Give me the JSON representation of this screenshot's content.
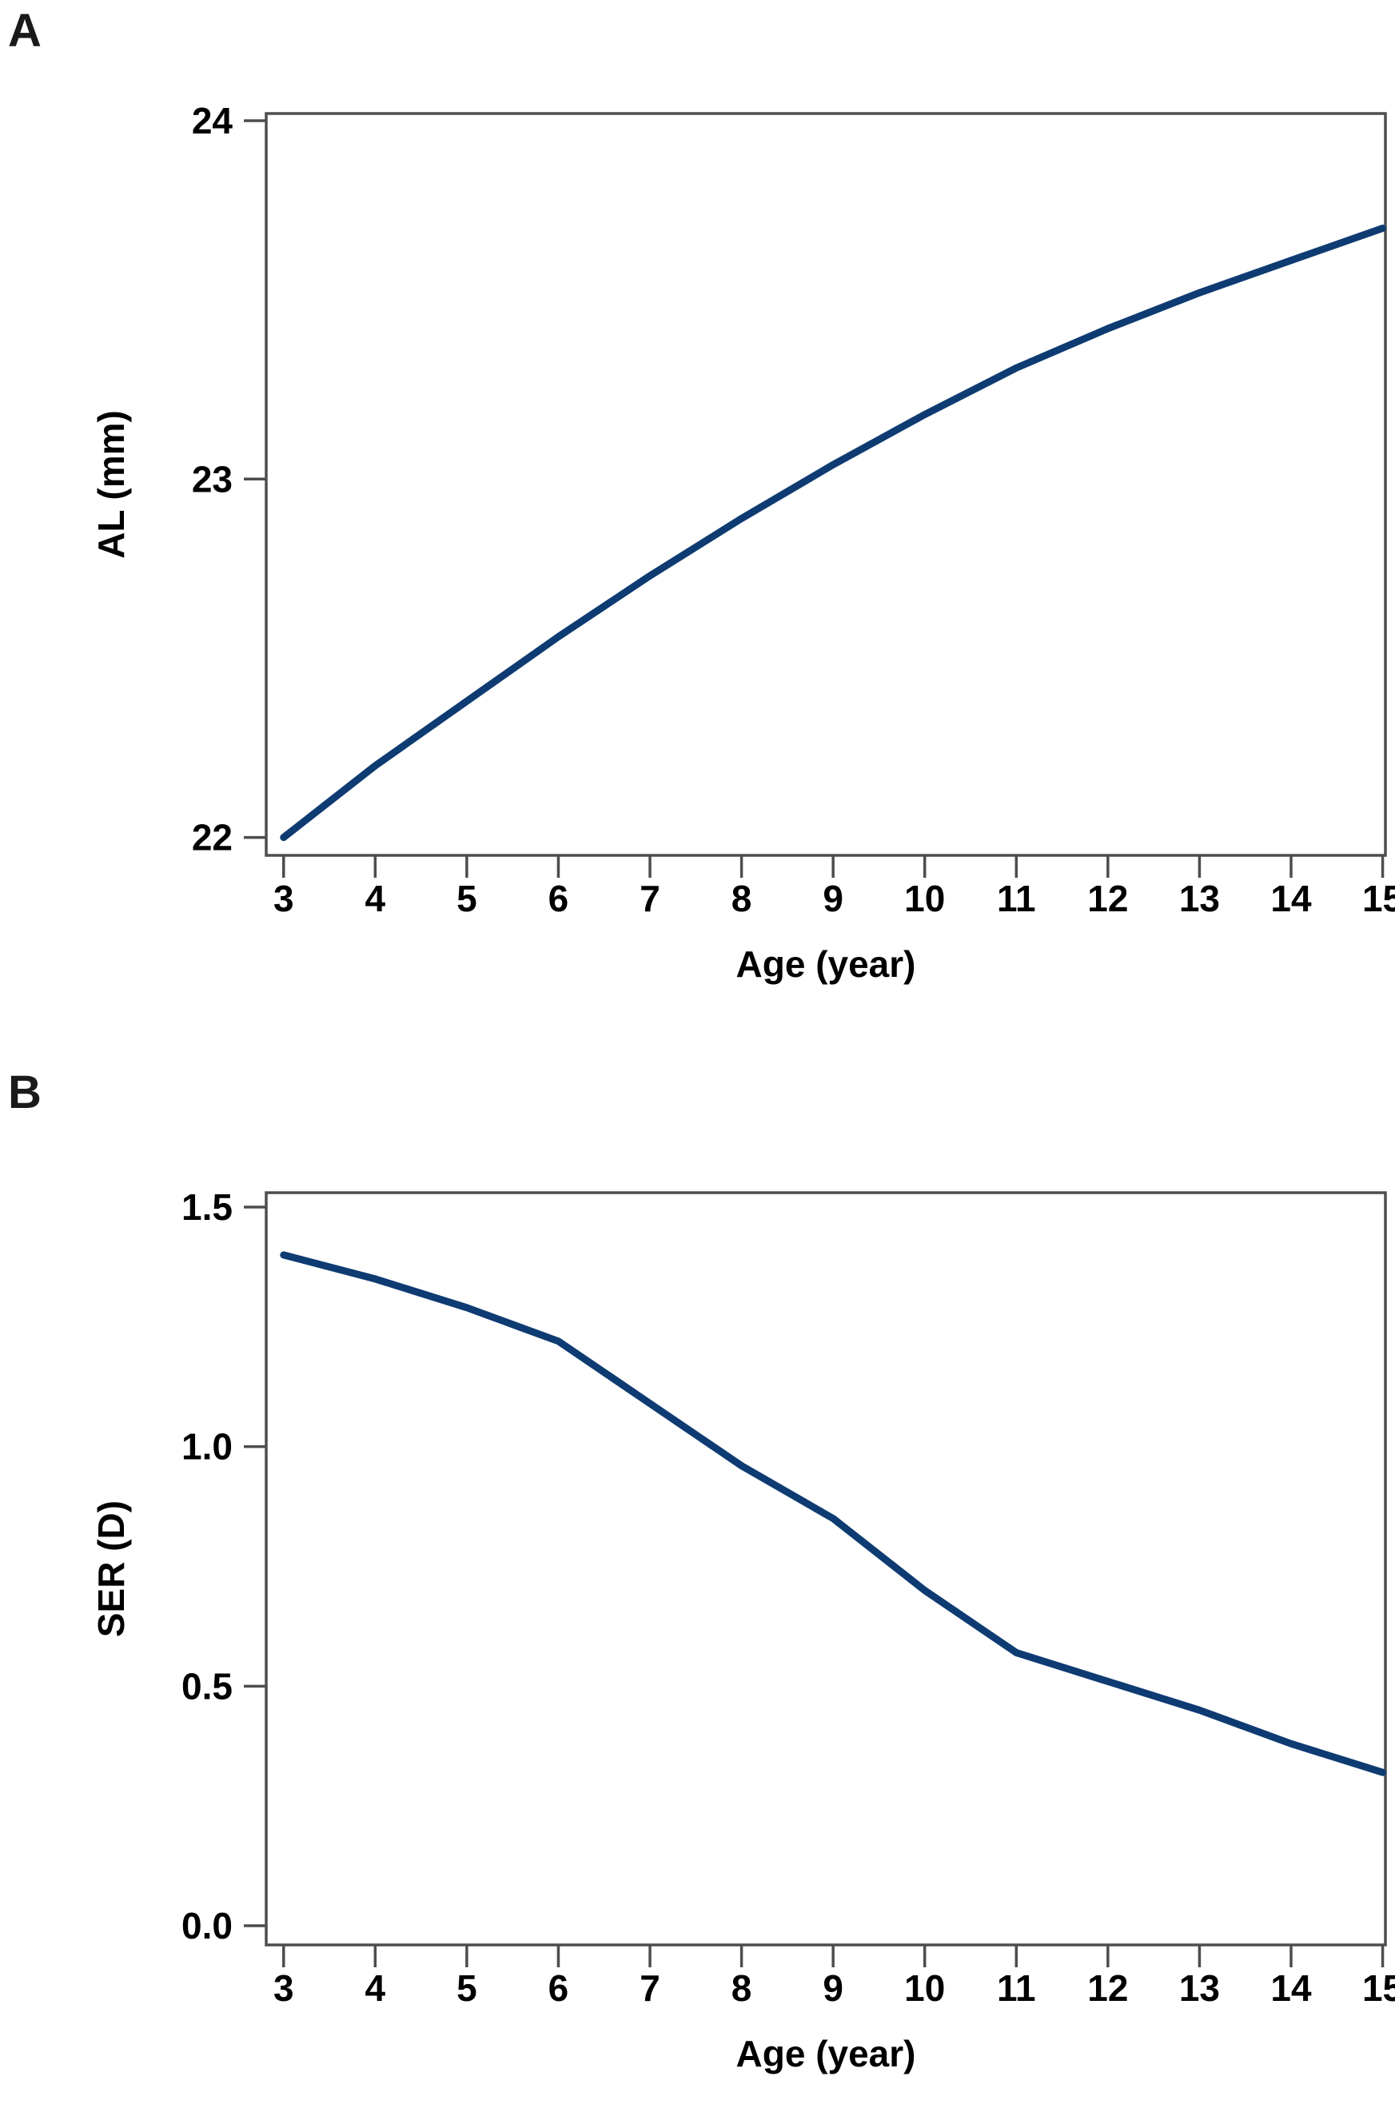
{
  "figure": {
    "background": "#ffffff",
    "panels": [
      {
        "letter": "A"
      },
      {
        "letter": "B"
      }
    ],
    "axis_color": "#4d4d4d",
    "text_color": "#000000"
  },
  "chart_data": [
    {
      "id": "panel-a",
      "type": "line",
      "panel_label": "A",
      "title": "",
      "xlabel": "Age (year)",
      "ylabel": "AL (mm)",
      "x": [
        3,
        4,
        5,
        6,
        7,
        8,
        9,
        10,
        11,
        12,
        13,
        14,
        15
      ],
      "series": [
        {
          "name": "AL",
          "values": [
            22.0,
            22.2,
            22.38,
            22.56,
            22.73,
            22.89,
            23.04,
            23.18,
            23.31,
            23.42,
            23.52,
            23.61,
            23.7
          ]
        }
      ],
      "xticks": [
        3,
        4,
        5,
        6,
        7,
        8,
        9,
        10,
        11,
        12,
        13,
        14,
        15
      ],
      "xtick_labels": [
        "3",
        "4",
        "5",
        "6",
        "7",
        "8",
        "9",
        "10",
        "11",
        "12",
        "13",
        "14",
        "15"
      ],
      "yticks": [
        22,
        23,
        24
      ],
      "ytick_labels": [
        "22",
        "23",
        "24"
      ],
      "xlim": [
        2.81,
        15.03
      ],
      "ylim": [
        21.95,
        24.02
      ],
      "grid": false,
      "legend": "none",
      "line_color": "#0e3b72"
    },
    {
      "id": "panel-b",
      "type": "line",
      "panel_label": "B",
      "title": "",
      "xlabel": "Age (year)",
      "ylabel": "SER (D)",
      "x": [
        3,
        4,
        5,
        6,
        7,
        8,
        9,
        10,
        11,
        12,
        13,
        14,
        15
      ],
      "series": [
        {
          "name": "SER",
          "values": [
            1.4,
            1.35,
            1.29,
            1.22,
            1.09,
            0.96,
            0.85,
            0.7,
            0.57,
            0.51,
            0.45,
            0.38,
            0.32
          ]
        }
      ],
      "xticks": [
        3,
        4,
        5,
        6,
        7,
        8,
        9,
        10,
        11,
        12,
        13,
        14,
        15
      ],
      "xtick_labels": [
        "3",
        "4",
        "5",
        "6",
        "7",
        "8",
        "9",
        "10",
        "11",
        "12",
        "13",
        "14",
        "15"
      ],
      "yticks": [
        0.0,
        0.5,
        1.0,
        1.5
      ],
      "ytick_labels": [
        "0.0",
        "0.5",
        "1.0",
        "1.5"
      ],
      "xlim": [
        2.81,
        15.03
      ],
      "ylim": [
        -0.04,
        1.53
      ],
      "grid": false,
      "legend": "none",
      "line_color": "#0e3b72"
    }
  ]
}
